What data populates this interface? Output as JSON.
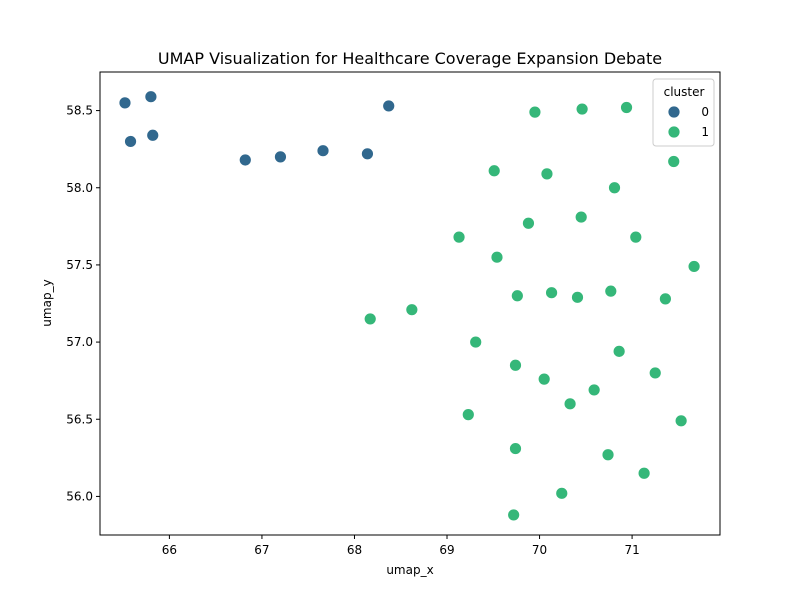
{
  "chart_data": {
    "type": "scatter",
    "title": "UMAP Visualization for Healthcare Coverage Expansion Debate",
    "xlabel": "umap_x",
    "ylabel": "umap_y",
    "xlim": [
      65.25,
      71.95
    ],
    "ylim": [
      55.75,
      58.75
    ],
    "xticks": [
      66,
      67,
      68,
      69,
      70,
      71
    ],
    "yticks": [
      56.0,
      56.5,
      57.0,
      57.5,
      58.0,
      58.5
    ],
    "xtick_labels": [
      "66",
      "67",
      "68",
      "69",
      "70",
      "71"
    ],
    "ytick_labels": [
      "56.0",
      "56.5",
      "57.0",
      "57.5",
      "58.0",
      "58.5"
    ],
    "grid": false,
    "legend": {
      "title": "cluster",
      "placement": "top-right",
      "entries": [
        "0",
        "1"
      ]
    },
    "series": [
      {
        "name": "0",
        "color": "#31688e",
        "x": [
          65.52,
          65.8,
          65.58,
          65.82,
          66.82,
          67.2,
          67.66,
          68.14,
          68.37
        ],
        "y": [
          58.55,
          58.59,
          58.3,
          58.34,
          58.18,
          58.2,
          58.24,
          58.22,
          58.53
        ]
      },
      {
        "name": "1",
        "color": "#35b779",
        "x": [
          69.95,
          70.46,
          70.94,
          69.51,
          70.08,
          70.81,
          71.45,
          69.88,
          70.45,
          69.13,
          71.04,
          69.54,
          71.67,
          68.17,
          68.62,
          69.76,
          70.13,
          70.41,
          70.77,
          71.36,
          69.31,
          70.86,
          69.74,
          70.05,
          71.25,
          70.59,
          69.23,
          70.33,
          71.53,
          69.74,
          70.74,
          71.13,
          70.24,
          69.72
        ],
        "y": [
          58.49,
          58.51,
          58.52,
          58.11,
          58.09,
          58.0,
          58.17,
          57.77,
          57.81,
          57.68,
          57.68,
          57.55,
          57.49,
          57.15,
          57.21,
          57.3,
          57.32,
          57.29,
          57.33,
          57.28,
          57.0,
          56.94,
          56.85,
          56.76,
          56.8,
          56.69,
          56.53,
          56.6,
          56.49,
          56.31,
          56.27,
          56.15,
          56.02,
          55.88
        ]
      }
    ]
  }
}
